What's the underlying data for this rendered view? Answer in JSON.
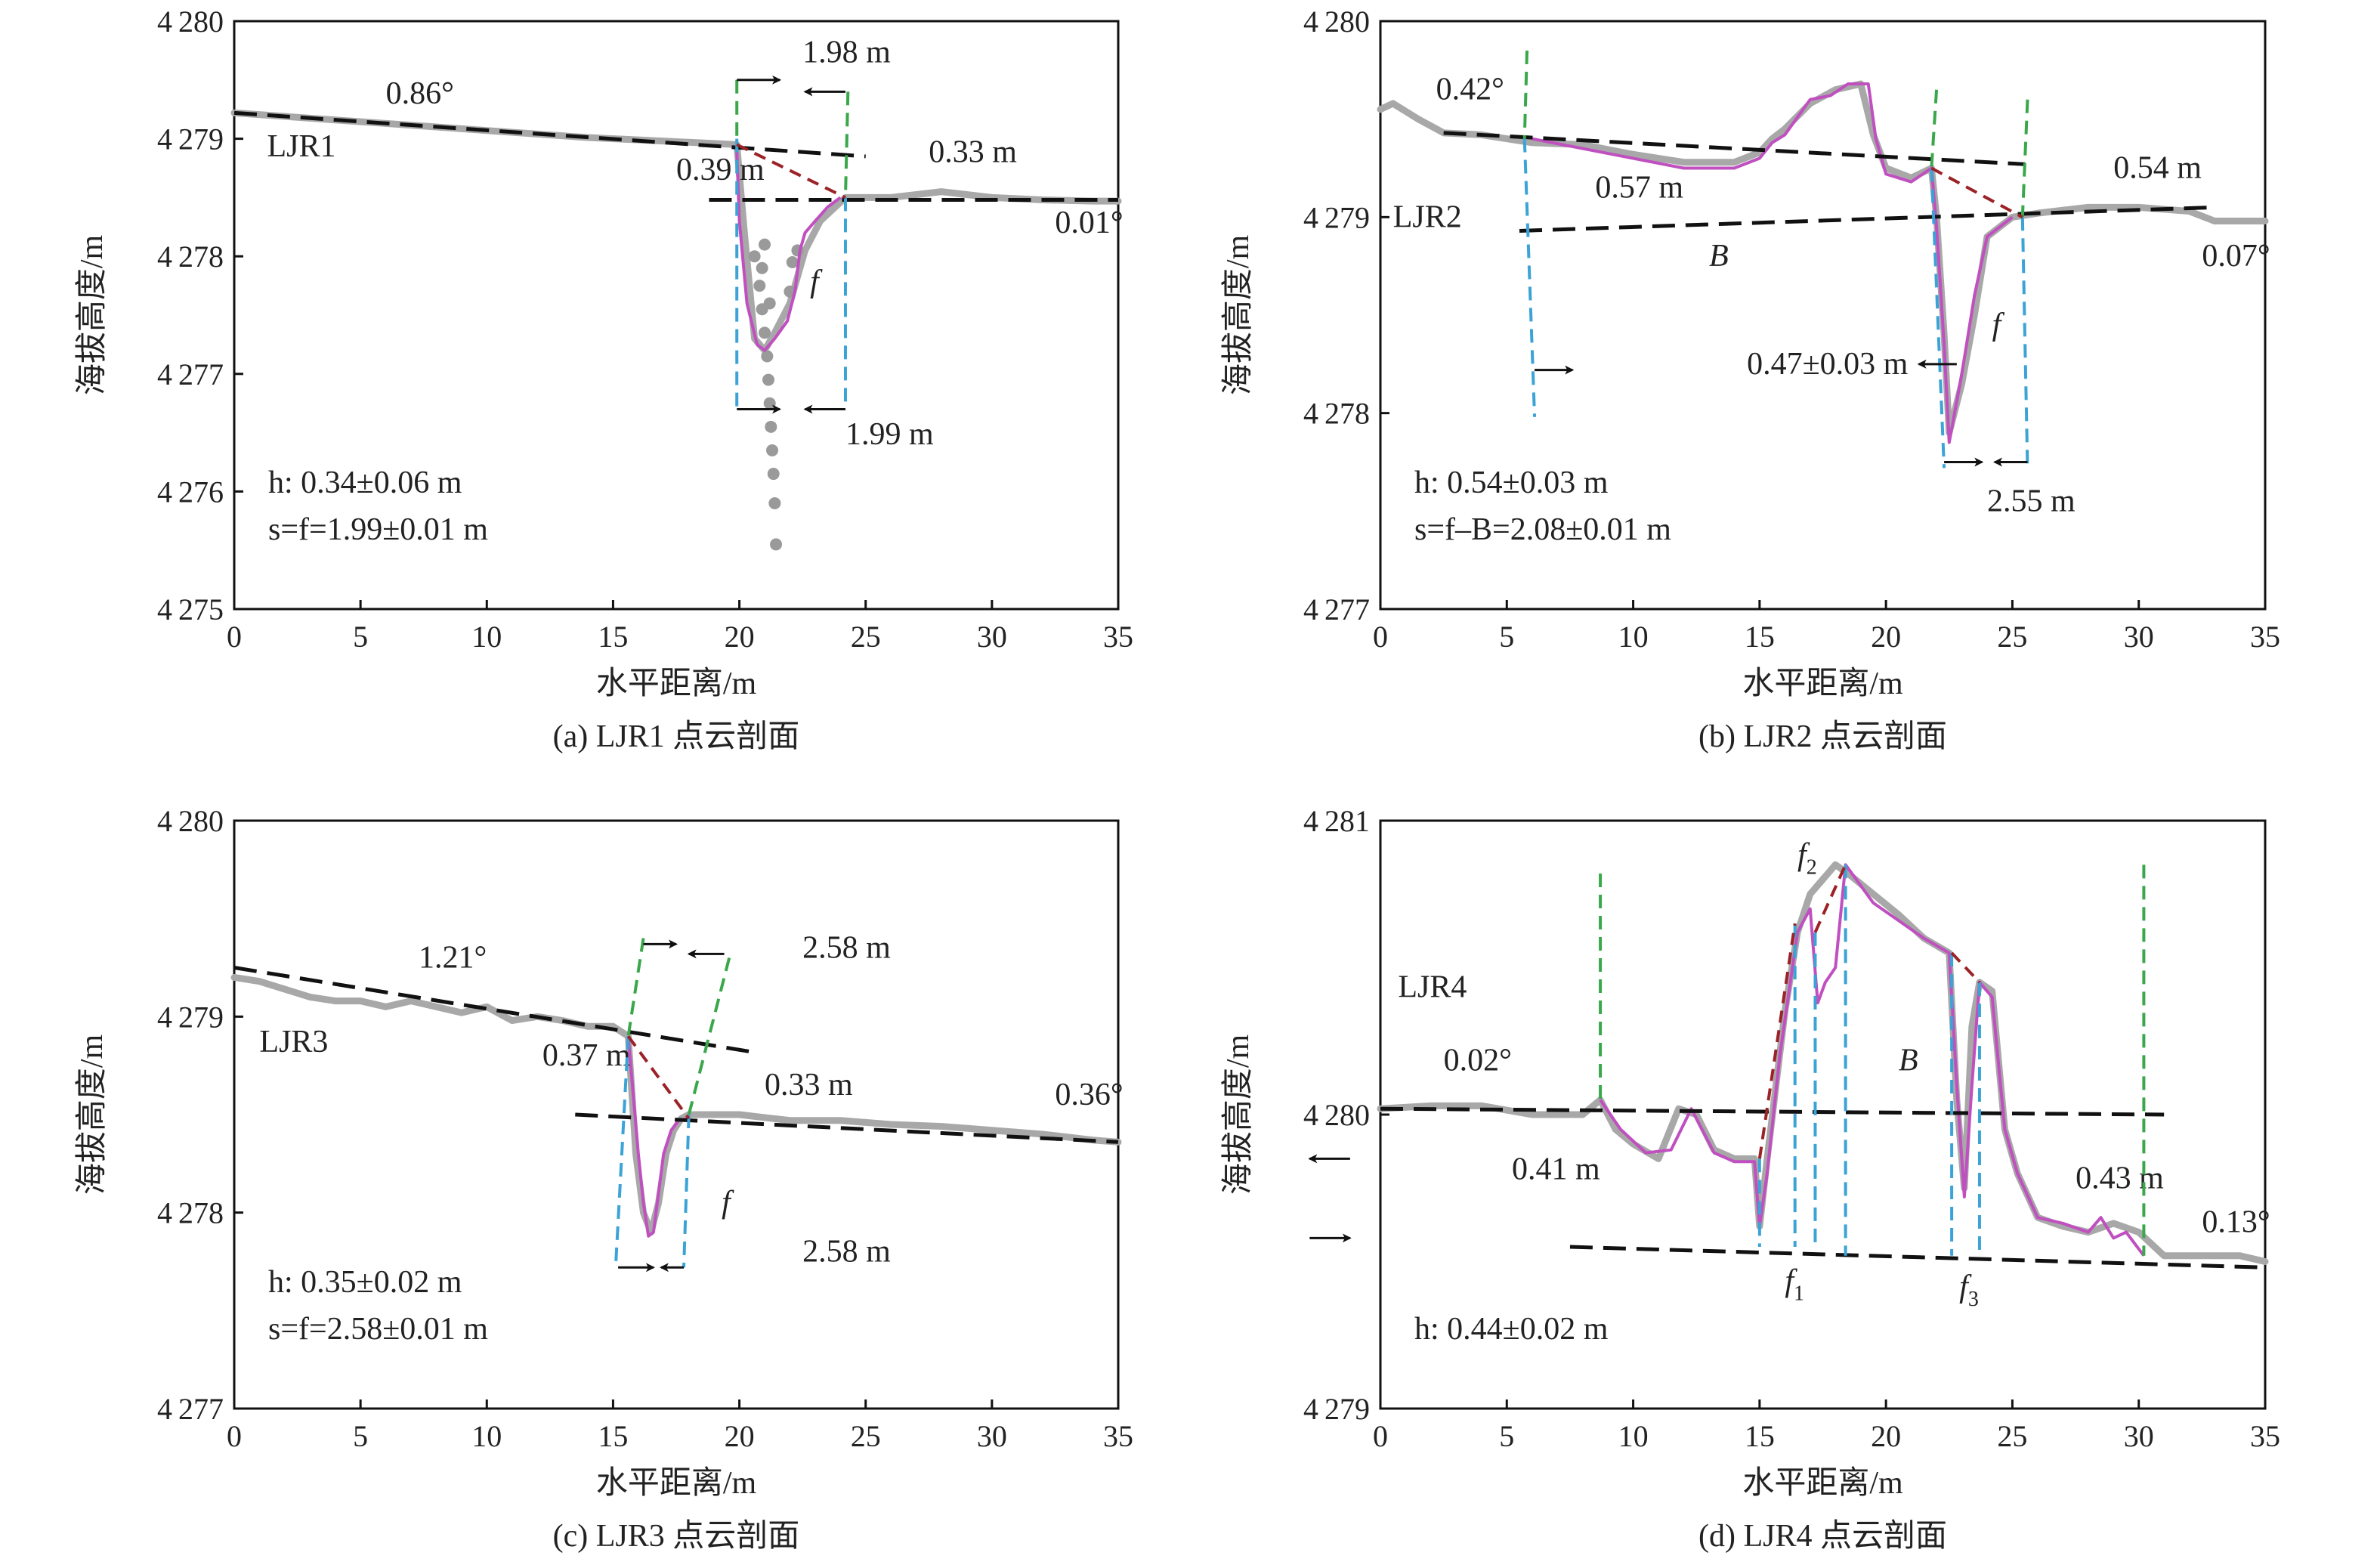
{
  "figure": {
    "axis_xlabel": "水平距离/m",
    "axis_ylabel": "海拔高度/m"
  },
  "chart_data": [
    {
      "type": "line",
      "caption": "(a) LJR1 点云剖面",
      "profile_label": "LJR1",
      "xlim": [
        0,
        35
      ],
      "ylim": [
        4275,
        4280
      ],
      "xticks": [
        "0",
        "5",
        "10",
        "15",
        "20",
        "25",
        "30",
        "35"
      ],
      "yticks": [
        "4275",
        "4276",
        "4277",
        "4278",
        "4279",
        "4280"
      ],
      "profile": {
        "x": [
          0,
          2,
          4,
          6,
          8,
          10,
          12,
          14,
          16,
          18,
          19.9,
          20.2,
          20.6,
          21.0,
          21.4,
          22.0,
          22.6,
          23.2,
          23.8,
          24.2,
          26,
          28,
          30,
          32,
          34,
          35
        ],
        "y": [
          4279.22,
          4279.19,
          4279.16,
          4279.13,
          4279.1,
          4279.07,
          4279.04,
          4279.01,
          4278.99,
          4278.97,
          4278.95,
          4278.2,
          4277.3,
          4277.2,
          4277.35,
          4277.6,
          4278.05,
          4278.3,
          4278.42,
          4278.5,
          4278.5,
          4278.55,
          4278.5,
          4278.48,
          4278.47,
          4278.47
        ]
      },
      "fitted_curve": {
        "x": [
          19.9,
          20.0,
          20.3,
          20.7,
          21.0,
          21.4,
          21.9,
          22.2,
          22.4,
          22.6,
          23.0,
          23.5,
          24.0
        ],
        "y": [
          4278.9,
          4278.3,
          4277.6,
          4277.25,
          4277.2,
          4277.3,
          4277.45,
          4277.7,
          4278.05,
          4278.2,
          4278.3,
          4278.42,
          4278.5
        ]
      },
      "scatter_points": {
        "x": [
          20.6,
          20.8,
          20.9,
          21.0,
          21.1,
          21.15,
          21.2,
          21.25,
          21.3,
          21.35,
          21.4,
          21.45,
          21.0,
          20.9,
          21.2,
          22.0,
          22.3,
          22.1
        ],
        "y": [
          4278.0,
          4277.75,
          4277.55,
          4277.35,
          4277.15,
          4276.95,
          4276.75,
          4276.55,
          4276.35,
          4276.15,
          4275.9,
          4275.55,
          4278.1,
          4277.9,
          4277.6,
          4277.7,
          4278.05,
          4277.95
        ]
      },
      "trend_lines": [
        {
          "x": [
            0,
            25
          ],
          "y": [
            4279.22,
            4278.85
          ],
          "label": "0.86°"
        },
        {
          "x": [
            18.8,
            35
          ],
          "y": [
            4278.48,
            4278.48
          ],
          "label": "0.01°"
        }
      ],
      "annotations": [
        {
          "text": "0.86°",
          "x": 6,
          "y": 4279.3
        },
        {
          "text": "0.39 m",
          "x": 17.5,
          "y": 4278.65
        },
        {
          "text": "0.33 m",
          "x": 27.5,
          "y": 4278.8
        },
        {
          "text": "0.01°",
          "x": 32.5,
          "y": 4278.2
        },
        {
          "text": "1.98 m",
          "x": 22.5,
          "y": 4279.65
        },
        {
          "text": "1.99 m",
          "x": 24.2,
          "y": 4276.4
        },
        {
          "text": "f",
          "x": 22.8,
          "y": 4277.7,
          "italic": true
        }
      ],
      "stats": [
        "h: 0.34±0.06 m",
        "s=f=1.99±0.01 m"
      ]
    },
    {
      "type": "line",
      "caption": "(b) LJR2 点云剖面",
      "profile_label": "LJR2",
      "xlim": [
        0,
        35
      ],
      "ylim": [
        4277,
        4280
      ],
      "xticks": [
        "0",
        "5",
        "10",
        "15",
        "20",
        "25",
        "30",
        "35"
      ],
      "yticks": [
        "4277",
        "4278",
        "4279",
        "4280"
      ],
      "profile": {
        "x": [
          0,
          0.5,
          1.5,
          2.5,
          4,
          6,
          8,
          10,
          12,
          14,
          15,
          15.5,
          16,
          17,
          18,
          19,
          19.5,
          20,
          21,
          21.8,
          22.0,
          22.3,
          22.5,
          23,
          23.5,
          24,
          25,
          26,
          28,
          30,
          32,
          33,
          34,
          35
        ],
        "y": [
          4279.55,
          4279.58,
          4279.5,
          4279.43,
          4279.42,
          4279.38,
          4279.37,
          4279.32,
          4279.28,
          4279.28,
          4279.33,
          4279.4,
          4279.45,
          4279.58,
          4279.65,
          4279.68,
          4279.42,
          4279.25,
          4279.2,
          4279.25,
          4279.0,
          4278.4,
          4277.9,
          4278.15,
          4278.5,
          4278.9,
          4279.0,
          4279.02,
          4279.05,
          4279.05,
          4279.03,
          4278.98,
          4278.98,
          4278.98
        ]
      },
      "fitted_curve": {
        "x": [
          6,
          8,
          10,
          12,
          14,
          15,
          15.5,
          16,
          17,
          17.8,
          18.5,
          19.3,
          19.6,
          20,
          21,
          21.8,
          22.0,
          22.3,
          22.5,
          23,
          23.5,
          24,
          25
        ],
        "y": [
          4279.4,
          4279.35,
          4279.3,
          4279.25,
          4279.25,
          4279.3,
          4279.38,
          4279.42,
          4279.6,
          4279.62,
          4279.68,
          4279.68,
          4279.4,
          4279.22,
          4279.18,
          4279.25,
          4278.95,
          4278.35,
          4277.85,
          4278.2,
          4278.6,
          4278.9,
          4279.0
        ]
      },
      "trend_lines": [
        {
          "x": [
            2.5,
            25.5
          ],
          "y": [
            4279.43,
            4279.27
          ],
          "label": "0.42°"
        },
        {
          "x": [
            5.5,
            33
          ],
          "y": [
            4278.93,
            4279.05
          ],
          "label": "0.07°"
        }
      ],
      "annotations": [
        {
          "text": "0.42°",
          "x": 2.2,
          "y": 4279.6
        },
        {
          "text": "0.57 m",
          "x": 8.5,
          "y": 4279.1
        },
        {
          "text": "0.54 m",
          "x": 29,
          "y": 4279.2
        },
        {
          "text": "B",
          "x": 13,
          "y": 4278.75,
          "italic": true
        },
        {
          "text": "0.07°",
          "x": 32.5,
          "y": 4278.75
        },
        {
          "text": "0.47±0.03 m",
          "x": 14.5,
          "y": 4278.2
        },
        {
          "text": "2.55 m",
          "x": 24,
          "y": 4277.5
        },
        {
          "text": "f",
          "x": 24.2,
          "y": 4278.4,
          "italic": true
        }
      ],
      "stats": [
        "h: 0.54±0.03 m",
        "s=f–B=2.08±0.01 m"
      ]
    },
    {
      "type": "line",
      "caption": "(c) LJR3 点云剖面",
      "profile_label": "LJR3",
      "xlim": [
        0,
        35
      ],
      "ylim": [
        4277,
        4280
      ],
      "xticks": [
        "0",
        "5",
        "10",
        "15",
        "20",
        "25",
        "30",
        "35"
      ],
      "yticks": [
        "4277",
        "4278",
        "4279",
        "4280"
      ],
      "profile": {
        "x": [
          0,
          1,
          2,
          3,
          4,
          5,
          6,
          7,
          8,
          9,
          10,
          11,
          12,
          13,
          14,
          15,
          15.6,
          15.9,
          16.2,
          16.5,
          16.8,
          17.1,
          17.4,
          17.7,
          18,
          19,
          20,
          22,
          24,
          26,
          28,
          30,
          32,
          34,
          35
        ],
        "y": [
          4279.2,
          4279.18,
          4279.14,
          4279.1,
          4279.08,
          4279.08,
          4279.05,
          4279.08,
          4279.05,
          4279.02,
          4279.05,
          4278.98,
          4279.0,
          4278.98,
          4278.95,
          4278.95,
          4278.9,
          4278.3,
          4278.0,
          4277.9,
          4278.05,
          4278.3,
          4278.42,
          4278.48,
          4278.5,
          4278.5,
          4278.5,
          4278.47,
          4278.47,
          4278.45,
          4278.44,
          4278.42,
          4278.4,
          4278.37,
          4278.36
        ]
      },
      "fitted_curve": {
        "x": [
          15.6,
          15.8,
          16.0,
          16.2,
          16.4,
          16.6,
          16.8,
          17.0,
          17.3,
          17.6,
          18.0
        ],
        "y": [
          4278.9,
          4278.6,
          4278.3,
          4278.05,
          4277.88,
          4277.9,
          4278.1,
          4278.3,
          4278.42,
          4278.47,
          4278.48
        ]
      },
      "trend_lines": [
        {
          "x": [
            0,
            20.5
          ],
          "y": [
            4279.25,
            4278.82
          ],
          "label": "1.21°"
        },
        {
          "x": [
            13.5,
            35
          ],
          "y": [
            4278.5,
            4278.36
          ],
          "label": "0.36°"
        }
      ],
      "annotations": [
        {
          "text": "1.21°",
          "x": 7.3,
          "y": 4279.25
        },
        {
          "text": "0.37 m",
          "x": 12.2,
          "y": 4278.75
        },
        {
          "text": "0.33 m",
          "x": 21,
          "y": 4278.6
        },
        {
          "text": "0.36°",
          "x": 32.5,
          "y": 4278.55
        },
        {
          "text": "2.58 m",
          "x": 22.5,
          "y": 4279.3
        },
        {
          "text": "2.58 m",
          "x": 22.5,
          "y": 4277.75
        },
        {
          "text": "f",
          "x": 19.3,
          "y": 4278.0,
          "italic": true
        }
      ],
      "stats": [
        "h: 0.35±0.02 m",
        "s=f=2.58±0.01 m"
      ]
    },
    {
      "type": "line",
      "caption": "(d) LJR4 点云剖面",
      "profile_label": "LJR4",
      "xlim": [
        0,
        35
      ],
      "ylim": [
        4279,
        4281
      ],
      "xticks": [
        "0",
        "5",
        "10",
        "15",
        "20",
        "25",
        "30",
        "35"
      ],
      "yticks": [
        "4279",
        "4280",
        "4281"
      ],
      "profile": {
        "x": [
          0,
          2,
          4,
          6,
          8,
          8.7,
          9.3,
          10,
          11,
          11.8,
          12.5,
          13.2,
          14,
          14.8,
          15.0,
          15.3,
          16,
          16.5,
          17.0,
          17.3,
          18.0,
          18.5,
          19.5,
          20.5,
          21.5,
          22.5,
          22.8,
          23.1,
          23.4,
          23.7,
          24.2,
          24.7,
          25.2,
          26,
          27,
          28,
          29,
          30,
          31,
          32,
          33,
          34,
          35
        ],
        "y": [
          4280.02,
          4280.03,
          4280.03,
          4280.0,
          4280.0,
          4280.05,
          4279.95,
          4279.9,
          4279.85,
          4280.02,
          4280.0,
          4279.88,
          4279.85,
          4279.85,
          4279.62,
          4279.85,
          4280.35,
          4280.62,
          4280.75,
          4280.78,
          4280.85,
          4280.82,
          4280.75,
          4280.68,
          4280.6,
          4280.55,
          4280.05,
          4279.75,
          4280.3,
          4280.45,
          4280.42,
          4279.95,
          4279.8,
          4279.65,
          4279.62,
          4279.6,
          4279.63,
          4279.6,
          4279.52,
          4279.52,
          4279.52,
          4279.52,
          4279.5
        ]
      },
      "fitted_curve": {
        "x": [
          8.7,
          9.5,
          10.5,
          11.5,
          12.3,
          13.2,
          14.0,
          14.8,
          15.0,
          15.3,
          15.8,
          16.5,
          17.0,
          17.3,
          17.6,
          18.0,
          18.4,
          19.5,
          20.5,
          21.5,
          22.5,
          22.8,
          23.1,
          23.4,
          23.7,
          24.2,
          24.7,
          25.2,
          26,
          27,
          28,
          28.5,
          29,
          29.5,
          30.2
        ],
        "y": [
          4280.05,
          4279.95,
          4279.87,
          4279.88,
          4280.02,
          4279.87,
          4279.84,
          4279.84,
          4279.62,
          4279.8,
          4280.2,
          4280.62,
          4280.7,
          4280.38,
          4280.45,
          4280.5,
          4280.85,
          4280.72,
          4280.66,
          4280.6,
          4280.55,
          4280.1,
          4279.72,
          4280.1,
          4280.45,
          4280.4,
          4279.95,
          4279.8,
          4279.65,
          4279.63,
          4279.6,
          4279.65,
          4279.58,
          4279.6,
          4279.52
        ]
      },
      "trend_lines": [
        {
          "x": [
            0,
            31
          ],
          "y": [
            4280.02,
            4280.0
          ],
          "label": "0.02°"
        },
        {
          "x": [
            7.5,
            35
          ],
          "y": [
            4279.55,
            4279.48
          ],
          "label": "0.13°"
        }
      ],
      "annotations": [
        {
          "text": "0.02°",
          "x": 2.5,
          "y": 4280.15
        },
        {
          "text": "0.41 m",
          "x": 5.2,
          "y": 4279.78
        },
        {
          "text": "B",
          "x": 20.5,
          "y": 4280.15,
          "italic": true
        },
        {
          "text": "0.43 m",
          "x": 27.5,
          "y": 4279.75
        },
        {
          "text": "0.13°",
          "x": 32.5,
          "y": 4279.6
        }
      ],
      "fault_labels": [
        {
          "text": "f",
          "sub": "1",
          "x": 16.0,
          "y": 4279.4
        },
        {
          "text": "f",
          "sub": "2",
          "x": 16.5,
          "y": 4280.85
        },
        {
          "text": "f",
          "sub": "3",
          "x": 22.9,
          "y": 4279.38
        }
      ],
      "stats": [
        "h: 0.44±0.02 m"
      ]
    }
  ]
}
